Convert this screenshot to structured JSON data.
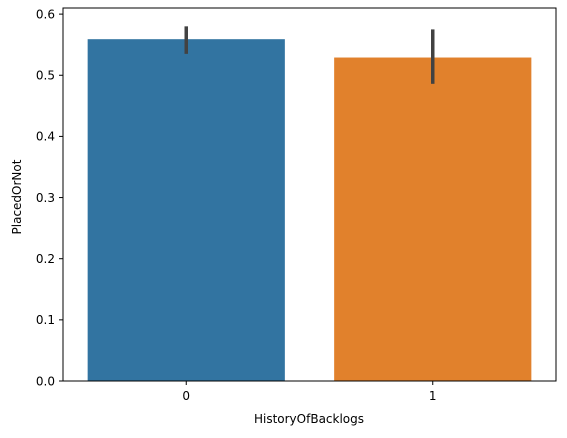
{
  "chart_data": {
    "type": "bar",
    "categories": [
      "0",
      "1"
    ],
    "values": [
      0.559,
      0.529
    ],
    "error_low": [
      0.535,
      0.486
    ],
    "error_high": [
      0.58,
      0.575
    ],
    "colors": [
      "#3274a1",
      "#e1812c"
    ],
    "error_color": "#424242",
    "xlabel": "HistoryOfBacklogs",
    "ylabel": "PlacedOrNot",
    "ylim": [
      0,
      0.61
    ],
    "yticks": [
      0.0,
      0.1,
      0.2,
      0.3,
      0.4,
      0.5,
      0.6
    ],
    "ytick_labels": [
      "0.0",
      "0.1",
      "0.2",
      "0.3",
      "0.4",
      "0.5",
      "0.6"
    ],
    "grid": false,
    "legend": "none"
  }
}
